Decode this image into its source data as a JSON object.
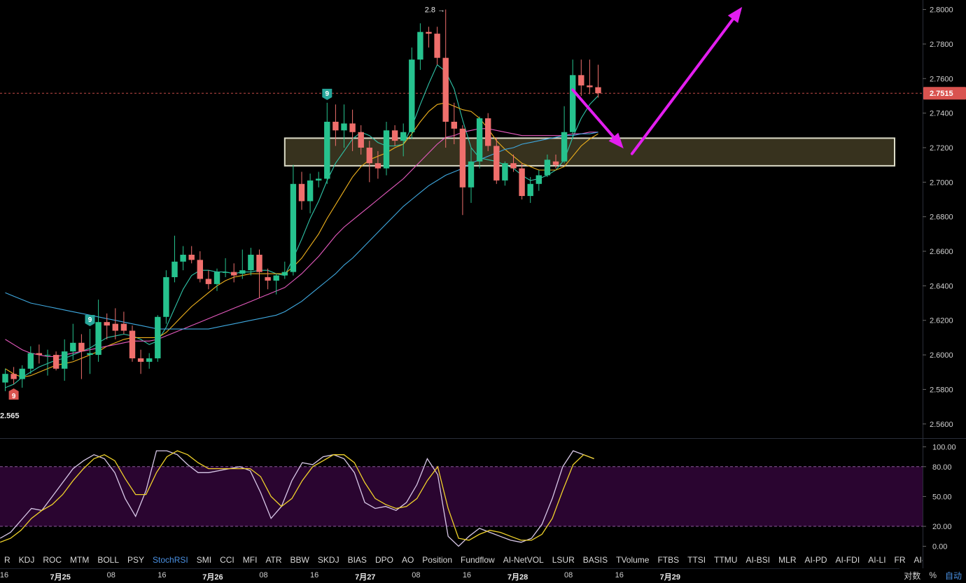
{
  "chart_data": [
    {
      "type": "candlestick",
      "price_levels": [
        2.8,
        2.78,
        2.76,
        2.74,
        2.72,
        2.7,
        2.68,
        2.66,
        2.64,
        2.62,
        2.6,
        2.58,
        2.56
      ],
      "price_labels": [
        "2.8000",
        "2.7800",
        "2.7600",
        "2.7400",
        "2.7200",
        "2.7000",
        "2.6800",
        "2.6600",
        "2.6400",
        "2.6200",
        "2.6000",
        "2.5800",
        "2.5600"
      ],
      "ylim": [
        2.5518,
        2.8055
      ],
      "current_price": {
        "value": 2.7515,
        "label": "2.7515",
        "color": "#d9534f"
      },
      "high_annotation": {
        "label": "2.8 →",
        "value": 2.8
      },
      "low_annotation": {
        "label": "2.565",
        "value": 2.565
      },
      "signals": [
        {
          "label": "9",
          "color": "#26a69a",
          "index": 10,
          "position": "above"
        },
        {
          "label": "9",
          "color": "#26a69a",
          "index": 38,
          "position": "above"
        },
        {
          "label": "9",
          "color": "#d9534f",
          "index": 1,
          "position": "below"
        }
      ],
      "zone": {
        "from": 2.7095,
        "to": 2.7255,
        "start_index": 33,
        "end_index": 105,
        "fill": "#3a3520",
        "stroke": "#dcdcc8"
      },
      "arrows": [
        {
          "from_index": 67,
          "from": 2.7535,
          "to_index": 73,
          "to": 2.7195,
          "color": "#e31ef0"
        },
        {
          "from_index": 74,
          "from": 2.7165,
          "to_index": 87,
          "to": 2.8015,
          "color": "#e31ef0"
        }
      ],
      "up_color": "#26c28e",
      "down_color": "#ef6f6c",
      "candles": [
        {
          "o": 2.584,
          "h": 2.592,
          "l": 2.579,
          "c": 2.589
        },
        {
          "o": 2.589,
          "h": 2.593,
          "l": 2.583,
          "c": 2.586
        },
        {
          "o": 2.586,
          "h": 2.594,
          "l": 2.581,
          "c": 2.592
        },
        {
          "o": 2.592,
          "h": 2.605,
          "l": 2.589,
          "c": 2.601
        },
        {
          "o": 2.601,
          "h": 2.606,
          "l": 2.595,
          "c": 2.6
        },
        {
          "o": 2.6,
          "h": 2.603,
          "l": 2.588,
          "c": 2.6
        },
        {
          "o": 2.6,
          "h": 2.602,
          "l": 2.591,
          "c": 2.592
        },
        {
          "o": 2.592,
          "h": 2.609,
          "l": 2.585,
          "c": 2.602
        },
        {
          "o": 2.602,
          "h": 2.618,
          "l": 2.597,
          "c": 2.607
        },
        {
          "o": 2.607,
          "h": 2.612,
          "l": 2.586,
          "c": 2.602
        },
        {
          "o": 2.6,
          "h": 2.615,
          "l": 2.589,
          "c": 2.601
        },
        {
          "o": 2.6,
          "h": 2.632,
          "l": 2.596,
          "c": 2.619
        },
        {
          "o": 2.619,
          "h": 2.624,
          "l": 2.609,
          "c": 2.617
        },
        {
          "o": 2.618,
          "h": 2.627,
          "l": 2.609,
          "c": 2.614
        },
        {
          "o": 2.618,
          "h": 2.625,
          "l": 2.612,
          "c": 2.614
        },
        {
          "o": 2.614,
          "h": 2.617,
          "l": 2.596,
          "c": 2.598
        },
        {
          "o": 2.598,
          "h": 2.603,
          "l": 2.589,
          "c": 2.596
        },
        {
          "o": 2.596,
          "h": 2.601,
          "l": 2.592,
          "c": 2.598
        },
        {
          "o": 2.598,
          "h": 2.623,
          "l": 2.596,
          "c": 2.622
        },
        {
          "o": 2.622,
          "h": 2.649,
          "l": 2.618,
          "c": 2.645
        },
        {
          "o": 2.645,
          "h": 2.669,
          "l": 2.642,
          "c": 2.654
        },
        {
          "o": 2.654,
          "h": 2.663,
          "l": 2.649,
          "c": 2.658
        },
        {
          "o": 2.658,
          "h": 2.663,
          "l": 2.653,
          "c": 2.655
        },
        {
          "o": 2.655,
          "h": 2.66,
          "l": 2.642,
          "c": 2.644
        },
        {
          "o": 2.644,
          "h": 2.649,
          "l": 2.638,
          "c": 2.641
        },
        {
          "o": 2.641,
          "h": 2.65,
          "l": 2.637,
          "c": 2.648
        },
        {
          "o": 2.648,
          "h": 2.656,
          "l": 2.645,
          "c": 2.648
        },
        {
          "o": 2.648,
          "h": 2.653,
          "l": 2.642,
          "c": 2.646
        },
        {
          "o": 2.647,
          "h": 2.661,
          "l": 2.644,
          "c": 2.649
        },
        {
          "o": 2.649,
          "h": 2.662,
          "l": 2.646,
          "c": 2.658
        },
        {
          "o": 2.658,
          "h": 2.661,
          "l": 2.633,
          "c": 2.648
        },
        {
          "o": 2.645,
          "h": 2.65,
          "l": 2.638,
          "c": 2.643
        },
        {
          "o": 2.643,
          "h": 2.647,
          "l": 2.635,
          "c": 2.646
        },
        {
          "o": 2.646,
          "h": 2.654,
          "l": 2.644,
          "c": 2.648
        },
        {
          "o": 2.648,
          "h": 2.71,
          "l": 2.646,
          "c": 2.699
        },
        {
          "o": 2.699,
          "h": 2.706,
          "l": 2.684,
          "c": 2.689
        },
        {
          "o": 2.689,
          "h": 2.705,
          "l": 2.682,
          "c": 2.701
        },
        {
          "o": 2.701,
          "h": 2.706,
          "l": 2.697,
          "c": 2.702
        },
        {
          "o": 2.702,
          "h": 2.746,
          "l": 2.699,
          "c": 2.735
        },
        {
          "o": 2.735,
          "h": 2.745,
          "l": 2.721,
          "c": 2.73
        },
        {
          "o": 2.73,
          "h": 2.745,
          "l": 2.72,
          "c": 2.734
        },
        {
          "o": 2.734,
          "h": 2.742,
          "l": 2.718,
          "c": 2.729
        },
        {
          "o": 2.729,
          "h": 2.733,
          "l": 2.716,
          "c": 2.72
        },
        {
          "o": 2.72,
          "h": 2.724,
          "l": 2.7,
          "c": 2.711
        },
        {
          "o": 2.711,
          "h": 2.718,
          "l": 2.702,
          "c": 2.708
        },
        {
          "o": 2.708,
          "h": 2.735,
          "l": 2.704,
          "c": 2.73
        },
        {
          "o": 2.73,
          "h": 2.733,
          "l": 2.721,
          "c": 2.724
        },
        {
          "o": 2.724,
          "h": 2.734,
          "l": 2.715,
          "c": 2.729
        },
        {
          "o": 2.729,
          "h": 2.778,
          "l": 2.725,
          "c": 2.771
        },
        {
          "o": 2.771,
          "h": 2.792,
          "l": 2.765,
          "c": 2.787
        },
        {
          "o": 2.787,
          "h": 2.79,
          "l": 2.778,
          "c": 2.786
        },
        {
          "o": 2.786,
          "h": 2.79,
          "l": 2.768,
          "c": 2.772
        },
        {
          "o": 2.772,
          "h": 2.8,
          "l": 2.72,
          "c": 2.735
        },
        {
          "o": 2.735,
          "h": 2.746,
          "l": 2.722,
          "c": 2.731
        },
        {
          "o": 2.731,
          "h": 2.733,
          "l": 2.681,
          "c": 2.697
        },
        {
          "o": 2.697,
          "h": 2.72,
          "l": 2.688,
          "c": 2.712
        },
        {
          "o": 2.712,
          "h": 2.738,
          "l": 2.708,
          "c": 2.737
        },
        {
          "o": 2.737,
          "h": 2.74,
          "l": 2.718,
          "c": 2.721
        },
        {
          "o": 2.721,
          "h": 2.726,
          "l": 2.699,
          "c": 2.701
        },
        {
          "o": 2.701,
          "h": 2.712,
          "l": 2.698,
          "c": 2.711
        },
        {
          "o": 2.711,
          "h": 2.716,
          "l": 2.706,
          "c": 2.708
        },
        {
          "o": 2.708,
          "h": 2.711,
          "l": 2.69,
          "c": 2.692
        },
        {
          "o": 2.692,
          "h": 2.703,
          "l": 2.688,
          "c": 2.699
        },
        {
          "o": 2.699,
          "h": 2.707,
          "l": 2.695,
          "c": 2.704
        },
        {
          "o": 2.704,
          "h": 2.716,
          "l": 2.703,
          "c": 2.713
        },
        {
          "o": 2.712,
          "h": 2.716,
          "l": 2.708,
          "c": 2.71
        },
        {
          "o": 2.712,
          "h": 2.744,
          "l": 2.711,
          "c": 2.729
        },
        {
          "o": 2.729,
          "h": 2.771,
          "l": 2.725,
          "c": 2.762
        },
        {
          "o": 2.762,
          "h": 2.771,
          "l": 2.75,
          "c": 2.756
        },
        {
          "o": 2.756,
          "h": 2.771,
          "l": 2.751,
          "c": 2.755
        },
        {
          "o": 2.755,
          "h": 2.768,
          "l": 2.749,
          "c": 2.7515
        }
      ],
      "ma_lines": [
        {
          "color": "#2fc4a8",
          "values": [
            2.581,
            2.583,
            2.587,
            2.59,
            2.593,
            2.595,
            2.597,
            2.598,
            2.6,
            2.602,
            2.604,
            2.607,
            2.61,
            2.611,
            2.612,
            2.611,
            2.609,
            2.606,
            2.608,
            2.616,
            2.627,
            2.638,
            2.646,
            2.649,
            2.649,
            2.648,
            2.648,
            2.647,
            2.648,
            2.648,
            2.649,
            2.649,
            2.647,
            2.646,
            2.656,
            2.667,
            2.679,
            2.689,
            2.701,
            2.711,
            2.718,
            2.725,
            2.729,
            2.727,
            2.723,
            2.721,
            2.721,
            2.722,
            2.732,
            2.745,
            2.757,
            2.768,
            2.764,
            2.754,
            2.736,
            2.72,
            2.714,
            2.713,
            2.712,
            2.71,
            2.708,
            2.704,
            2.701,
            2.702,
            2.704,
            2.707,
            2.713,
            2.726,
            2.737,
            2.745,
            2.75
          ]
        },
        {
          "color": "#f0b21d",
          "values": [
            2.592,
            2.589,
            2.587,
            2.588,
            2.59,
            2.592,
            2.594,
            2.595,
            2.596,
            2.598,
            2.6,
            2.602,
            2.605,
            2.607,
            2.609,
            2.61,
            2.61,
            2.61,
            2.61,
            2.613,
            2.618,
            2.623,
            2.628,
            2.632,
            2.636,
            2.64,
            2.643,
            2.645,
            2.646,
            2.647,
            2.647,
            2.647,
            2.647,
            2.647,
            2.651,
            2.656,
            2.663,
            2.67,
            2.679,
            2.687,
            2.695,
            2.703,
            2.709,
            2.713,
            2.715,
            2.717,
            2.72,
            2.722,
            2.728,
            2.735,
            2.741,
            2.745,
            2.746,
            2.744,
            2.742,
            2.741,
            2.737,
            2.731,
            2.724,
            2.719,
            2.715,
            2.711,
            2.709,
            2.707,
            2.707,
            2.707,
            2.709,
            2.715,
            2.721,
            2.725,
            2.728
          ]
        },
        {
          "color": "#e65abf",
          "values": [
            2.609,
            2.606,
            2.603,
            2.601,
            2.6,
            2.599,
            2.599,
            2.6,
            2.601,
            2.602,
            2.603,
            2.604,
            2.605,
            2.606,
            2.607,
            2.608,
            2.608,
            2.608,
            2.609,
            2.611,
            2.613,
            2.615,
            2.617,
            2.619,
            2.621,
            2.623,
            2.625,
            2.627,
            2.629,
            2.631,
            2.633,
            2.635,
            2.637,
            2.639,
            2.643,
            2.647,
            2.652,
            2.657,
            2.663,
            2.669,
            2.674,
            2.678,
            2.682,
            2.686,
            2.69,
            2.694,
            2.698,
            2.702,
            2.707,
            2.712,
            2.717,
            2.722,
            2.726,
            2.727,
            2.729,
            2.73,
            2.731,
            2.731,
            2.73,
            2.729,
            2.728,
            2.727,
            2.727,
            2.727,
            2.727,
            2.727,
            2.727,
            2.728,
            2.728,
            2.729,
            2.729
          ]
        },
        {
          "color": "#3fa9e0",
          "values": [
            2.636,
            2.634,
            2.632,
            2.63,
            2.629,
            2.628,
            2.627,
            2.626,
            2.625,
            2.624,
            2.623,
            2.622,
            2.621,
            2.62,
            2.619,
            2.618,
            2.617,
            2.616,
            2.615,
            2.615,
            2.615,
            2.615,
            2.615,
            2.615,
            2.615,
            2.616,
            2.617,
            2.618,
            2.619,
            2.62,
            2.621,
            2.622,
            2.623,
            2.625,
            2.628,
            2.631,
            2.635,
            2.639,
            2.643,
            2.647,
            2.652,
            2.656,
            2.661,
            2.666,
            2.671,
            2.676,
            2.681,
            2.686,
            2.69,
            2.694,
            2.698,
            2.701,
            2.704,
            2.706,
            2.708,
            2.711,
            2.713,
            2.715,
            2.717,
            2.719,
            2.72,
            2.722,
            2.723,
            2.724,
            2.725,
            2.726,
            2.727,
            2.727,
            2.728,
            2.728,
            2.729
          ]
        }
      ]
    },
    {
      "type": "line",
      "indicator": "StochRSI",
      "ylim": [
        -6,
        108
      ],
      "levels": [
        0,
        20,
        50,
        80,
        100
      ],
      "level_labels": [
        "0.00",
        "20.00",
        "50.00",
        "80.00",
        "100.00"
      ],
      "band": {
        "from": 20,
        "to": 80,
        "color": "#2a0530"
      },
      "series": [
        {
          "color": "#d8c8e8",
          "values": [
            8,
            14,
            26,
            38,
            36,
            50,
            64,
            78,
            86,
            92,
            88,
            74,
            48,
            30,
            56,
            96,
            96,
            92,
            82,
            74,
            74,
            76,
            78,
            80,
            76,
            54,
            28,
            40,
            66,
            84,
            82,
            90,
            92,
            88,
            74,
            44,
            38,
            40,
            36,
            44,
            62,
            88,
            72,
            10,
            0,
            10,
            18,
            14,
            10,
            6,
            4,
            8,
            22,
            48,
            80,
            96,
            92,
            88
          ]
        },
        {
          "color": "#f0d22a",
          "values": [
            4,
            8,
            16,
            28,
            36,
            42,
            52,
            66,
            78,
            88,
            92,
            86,
            68,
            52,
            52,
            74,
            90,
            96,
            92,
            84,
            78,
            78,
            78,
            78,
            78,
            70,
            50,
            40,
            48,
            66,
            80,
            86,
            92,
            92,
            84,
            64,
            48,
            42,
            38,
            40,
            48,
            66,
            80,
            38,
            8,
            6,
            12,
            16,
            14,
            10,
            6,
            6,
            12,
            28,
            56,
            82,
            92,
            88
          ]
        }
      ]
    }
  ],
  "indicator_bar": {
    "items": [
      "R",
      "KDJ",
      "ROC",
      "MTM",
      "BOLL",
      "PSY",
      "StochRSI",
      "SMI",
      "CCI",
      "MFI",
      "ATR",
      "BBW",
      "SKDJ",
      "BIAS",
      "DPO",
      "AO",
      "Position",
      "Fundflow",
      "AI-NetVOL",
      "LSUR",
      "BASIS",
      "TVolume",
      "FTBS",
      "TTSI",
      "TTMU",
      "AI-BSI",
      "MLR",
      "AI-PD",
      "AI-FDI",
      "AI-LI",
      "FR",
      "AI-BST"
    ],
    "active": "StochRSI"
  },
  "time_axis": {
    "ticks": [
      {
        "label": "16",
        "index": -5,
        "day": false
      },
      {
        "label": "7月25",
        "index": 13,
        "day": true
      },
      {
        "label": "08",
        "index": 25,
        "day": false
      },
      {
        "label": "16",
        "index": 37,
        "day": false
      },
      {
        "label": "7月26",
        "index": 49,
        "day": true
      },
      {
        "label": "08",
        "index": 61,
        "day": false
      },
      {
        "label": "16",
        "index": 73,
        "day": false
      },
      {
        "label": "7月27",
        "index": 85,
        "day": true
      },
      {
        "label": "08",
        "index": 97,
        "day": false
      },
      {
        "label": "16",
        "index": 109,
        "day": false
      },
      {
        "label": "7月28",
        "index": 121,
        "day": true
      },
      {
        "label": "08",
        "index": 133,
        "day": false
      },
      {
        "label": "16",
        "index": 145,
        "day": false
      },
      {
        "label": "7月29",
        "index": 157,
        "day": true
      }
    ]
  },
  "scale_controls": {
    "log": "对数",
    "percent": "%",
    "auto": "自动"
  }
}
